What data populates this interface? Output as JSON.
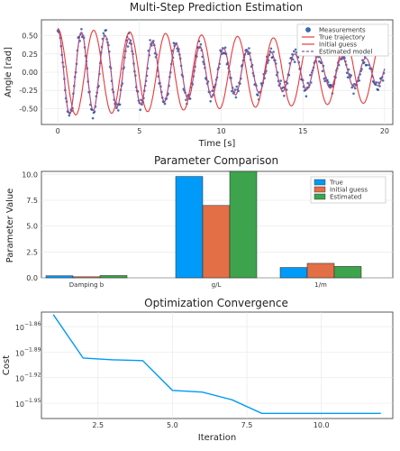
{
  "chart_data": [
    {
      "type": "line",
      "title": "Multi-Step Prediction Estimation",
      "xlabel": "Time [s]",
      "ylabel": "Angle [rad]",
      "xlim": [
        -1,
        20.5
      ],
      "ylim": [
        -0.72,
        0.72
      ],
      "xticks": [
        0,
        5,
        10,
        15,
        20
      ],
      "yticks": [
        -0.5,
        -0.25,
        0.0,
        0.25,
        0.5
      ],
      "xtick_labels": [
        "0",
        "5",
        "10",
        "15",
        "20"
      ],
      "ytick_labels": [
        "-0.50",
        "-0.25",
        "0.00",
        "0.25",
        "0.50"
      ],
      "grid": true,
      "legend_position": "top-right",
      "series": [
        {
          "name": "Measurements",
          "kind": "scatter",
          "color": "#1f4e9a",
          "model": {
            "amplitude": 0.6,
            "decay": 0.06,
            "period": 1.45,
            "noise": 0.08
          }
        },
        {
          "name": "True trajectory",
          "kind": "line",
          "color": "#e8393b",
          "model": {
            "amplitude": 0.6,
            "decay": 0.06,
            "period": 1.45
          }
        },
        {
          "name": "Initial guess",
          "kind": "line",
          "color": "#e8393b",
          "model": {
            "amplitude": 0.6,
            "decay": 0.018,
            "period": 2.2
          }
        },
        {
          "name": "Estimated model",
          "kind": "dashed",
          "color": "#7a5cc7",
          "model": {
            "amplitude": 0.6,
            "decay": 0.06,
            "period": 1.45
          }
        }
      ]
    },
    {
      "type": "bar",
      "title": "Parameter Comparison",
      "xlabel": "",
      "ylabel": "Parameter Value",
      "ylim": [
        0,
        10.3
      ],
      "yticks": [
        0.0,
        2.5,
        5.0,
        7.5,
        10.0
      ],
      "ytick_labels": [
        "0.0",
        "2.5",
        "5.0",
        "7.5",
        "10.0"
      ],
      "categories": [
        "Damping b",
        "g/L",
        "1/m"
      ],
      "legend_position": "top-right",
      "series": [
        {
          "name": "True",
          "color": "#009af9",
          "values": [
            0.2,
            9.81,
            1.0
          ]
        },
        {
          "name": "Initial guess",
          "color": "#e26f46",
          "values": [
            0.1,
            7.0,
            1.4
          ]
        },
        {
          "name": "Estimated",
          "color": "#3da44d",
          "values": [
            0.22,
            10.3,
            1.1
          ]
        }
      ]
    },
    {
      "type": "line",
      "title": "Optimization Convergence",
      "xlabel": "Iteration",
      "ylabel": "Cost",
      "scale": "log10",
      "xlim": [
        0.6,
        12.4
      ],
      "ylim": [
        -1.968,
        -1.843
      ],
      "xticks": [
        2.5,
        5.0,
        7.5,
        10.0
      ],
      "xtick_labels": [
        "2.5",
        "5.0",
        "7.5",
        "10.0"
      ],
      "yticks": [
        -1.86,
        -1.89,
        -1.92,
        -1.95
      ],
      "ytick_labels": [
        "10",
        "10",
        "10",
        "10"
      ],
      "ytick_exponents": [
        "−1.86",
        "−1.89",
        "−1.92",
        "−1.95"
      ],
      "grid": true,
      "series": [
        {
          "name": "",
          "color": "#009af9",
          "x": [
            1,
            2,
            3,
            4,
            5,
            6,
            7,
            8,
            9,
            10,
            11,
            12
          ],
          "log10_y": [
            -1.846,
            -1.897,
            -1.899,
            -1.9,
            -1.935,
            -1.937,
            -1.946,
            -1.962,
            -1.962,
            -1.962,
            -1.962,
            -1.962
          ]
        }
      ]
    }
  ]
}
